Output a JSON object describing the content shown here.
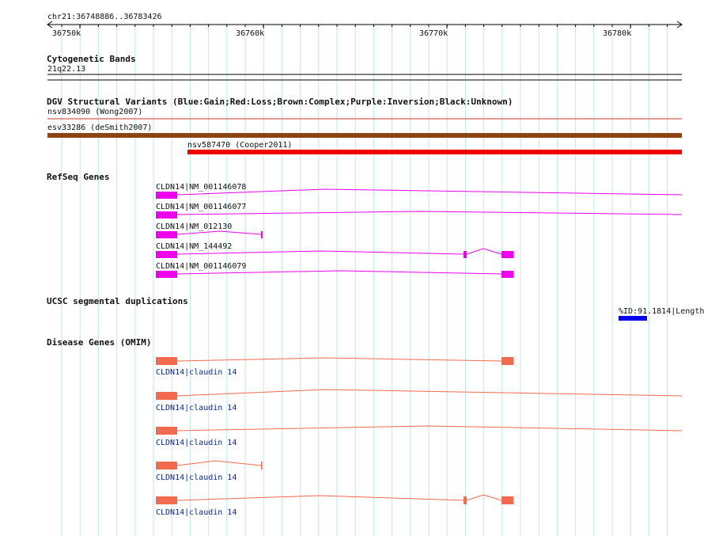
{
  "ruler": {
    "position": "chr21:36748886..36783426",
    "ticks": [
      "36750k",
      "36760k",
      "36770k",
      "36780k"
    ]
  },
  "tracks": {
    "cytoband": {
      "title": "Cytogenetic Bands",
      "band": "21q22.13"
    },
    "dgv": {
      "title": "DGV Structural Variants (Blue:Gain;Red:Loss;Brown:Complex;Purple:Inversion;Black:Unknown)",
      "features": [
        {
          "label": "nsv834090 (Wong2007)",
          "color": "#cc3333"
        },
        {
          "label": "esv33286 (deSmith2007)",
          "color": "#8b4513"
        },
        {
          "label": "nsv587470 (Cooper2011)",
          "color": "#ee0000"
        }
      ]
    },
    "refseq": {
      "title": "RefSeq Genes",
      "color": "#ee00ee",
      "features": [
        {
          "label": "CLDN14|NM_001146078"
        },
        {
          "label": "CLDN14|NM_001146077"
        },
        {
          "label": "CLDN14|NM_012130"
        },
        {
          "label": "CLDN14|NM_144492"
        },
        {
          "label": "CLDN14|NM_001146079"
        }
      ]
    },
    "segdup": {
      "title": "UCSC segmental duplications",
      "color": "#0000ee",
      "feature": {
        "label": "%ID:91.1814|Length"
      }
    },
    "omim": {
      "title": "Disease Genes (OMIM)",
      "color": "#f26a4f",
      "features": [
        {
          "label": "CLDN14|claudin 14"
        },
        {
          "label": "CLDN14|claudin 14"
        },
        {
          "label": "CLDN14|claudin 14"
        },
        {
          "label": "CLDN14|claudin 14"
        },
        {
          "label": "CLDN14|claudin 14"
        }
      ]
    }
  }
}
